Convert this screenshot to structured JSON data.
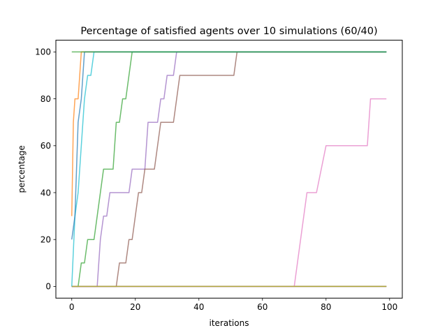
{
  "chart_data": {
    "type": "line",
    "title": "Percentage of satisfied agents over 10 simulations (60/40)",
    "xlabel": "iterations",
    "ylabel": "percentage",
    "xlim": [
      -5,
      104
    ],
    "ylim": [
      -5,
      105
    ],
    "xticks": [
      0,
      20,
      40,
      60,
      80,
      100
    ],
    "yticks": [
      0,
      20,
      40,
      60,
      80,
      100
    ],
    "grid": false,
    "series": [
      {
        "color": "#1f77b4",
        "x": [
          0,
          99
        ],
        "y": [
          0,
          0
        ]
      },
      {
        "color": "#ff7f0e",
        "x": [
          0,
          0.5,
          1,
          2,
          3,
          99
        ],
        "y": [
          30,
          70,
          80,
          80,
          100,
          100
        ]
      },
      {
        "color": "#2ca02c",
        "x": [
          0,
          1,
          2,
          3,
          4,
          5,
          6,
          7,
          8,
          9,
          10,
          11,
          12,
          13,
          14,
          15,
          16,
          17,
          18,
          19,
          99
        ],
        "y": [
          0,
          0,
          0,
          10,
          10,
          20,
          20,
          20,
          30,
          40,
          50,
          50,
          50,
          50,
          70,
          70,
          80,
          80,
          90,
          100,
          100
        ]
      },
      {
        "color": "#d62728",
        "x": [
          0,
          99
        ],
        "y": [
          0,
          0
        ]
      },
      {
        "color": "#9467bd",
        "x": [
          0,
          8,
          9,
          10,
          11,
          12,
          13,
          14,
          15,
          16,
          17,
          18,
          19,
          20,
          21,
          22,
          23,
          24,
          25,
          26,
          27,
          28,
          29,
          30,
          31,
          32,
          33,
          99
        ],
        "y": [
          0,
          0,
          20,
          30,
          30,
          40,
          40,
          40,
          40,
          40,
          40,
          40,
          50,
          50,
          50,
          50,
          50,
          70,
          70,
          70,
          70,
          80,
          80,
          90,
          90,
          90,
          100,
          100
        ]
      },
      {
        "color": "#8c564b",
        "x": [
          0,
          14,
          15,
          16,
          17,
          18,
          19,
          20,
          21,
          22,
          23,
          24,
          25,
          26,
          27,
          28,
          29,
          30,
          31,
          32,
          33,
          34,
          51,
          52,
          99
        ],
        "y": [
          0,
          0,
          10,
          10,
          10,
          20,
          20,
          30,
          40,
          40,
          50,
          50,
          50,
          50,
          60,
          70,
          70,
          70,
          70,
          70,
          80,
          90,
          90,
          100,
          100
        ]
      },
      {
        "color": "#e377c2",
        "x": [
          0,
          70,
          74,
          77,
          80,
          93,
          94,
          99
        ],
        "y": [
          0,
          0,
          40,
          40,
          60,
          60,
          80,
          80
        ]
      },
      {
        "color": "#7f7f7f",
        "x": [
          0,
          99
        ],
        "y": [
          0,
          0
        ]
      },
      {
        "color": "#bcbd22",
        "x": [
          0,
          99
        ],
        "y": [
          0,
          0
        ]
      },
      {
        "color": "#17becf",
        "x": [
          0,
          1,
          2,
          3,
          4,
          5,
          6,
          7,
          99
        ],
        "y": [
          0,
          30,
          40,
          60,
          80,
          90,
          90,
          100,
          100
        ]
      },
      {
        "color": "#1f77b4",
        "x": [
          0,
          1,
          2,
          3,
          4,
          99
        ],
        "y": [
          20,
          30,
          70,
          80,
          100,
          100
        ]
      },
      {
        "color": "#2ca02c",
        "x": [
          0,
          7,
          99
        ],
        "y": [
          100,
          100,
          100
        ]
      }
    ]
  }
}
